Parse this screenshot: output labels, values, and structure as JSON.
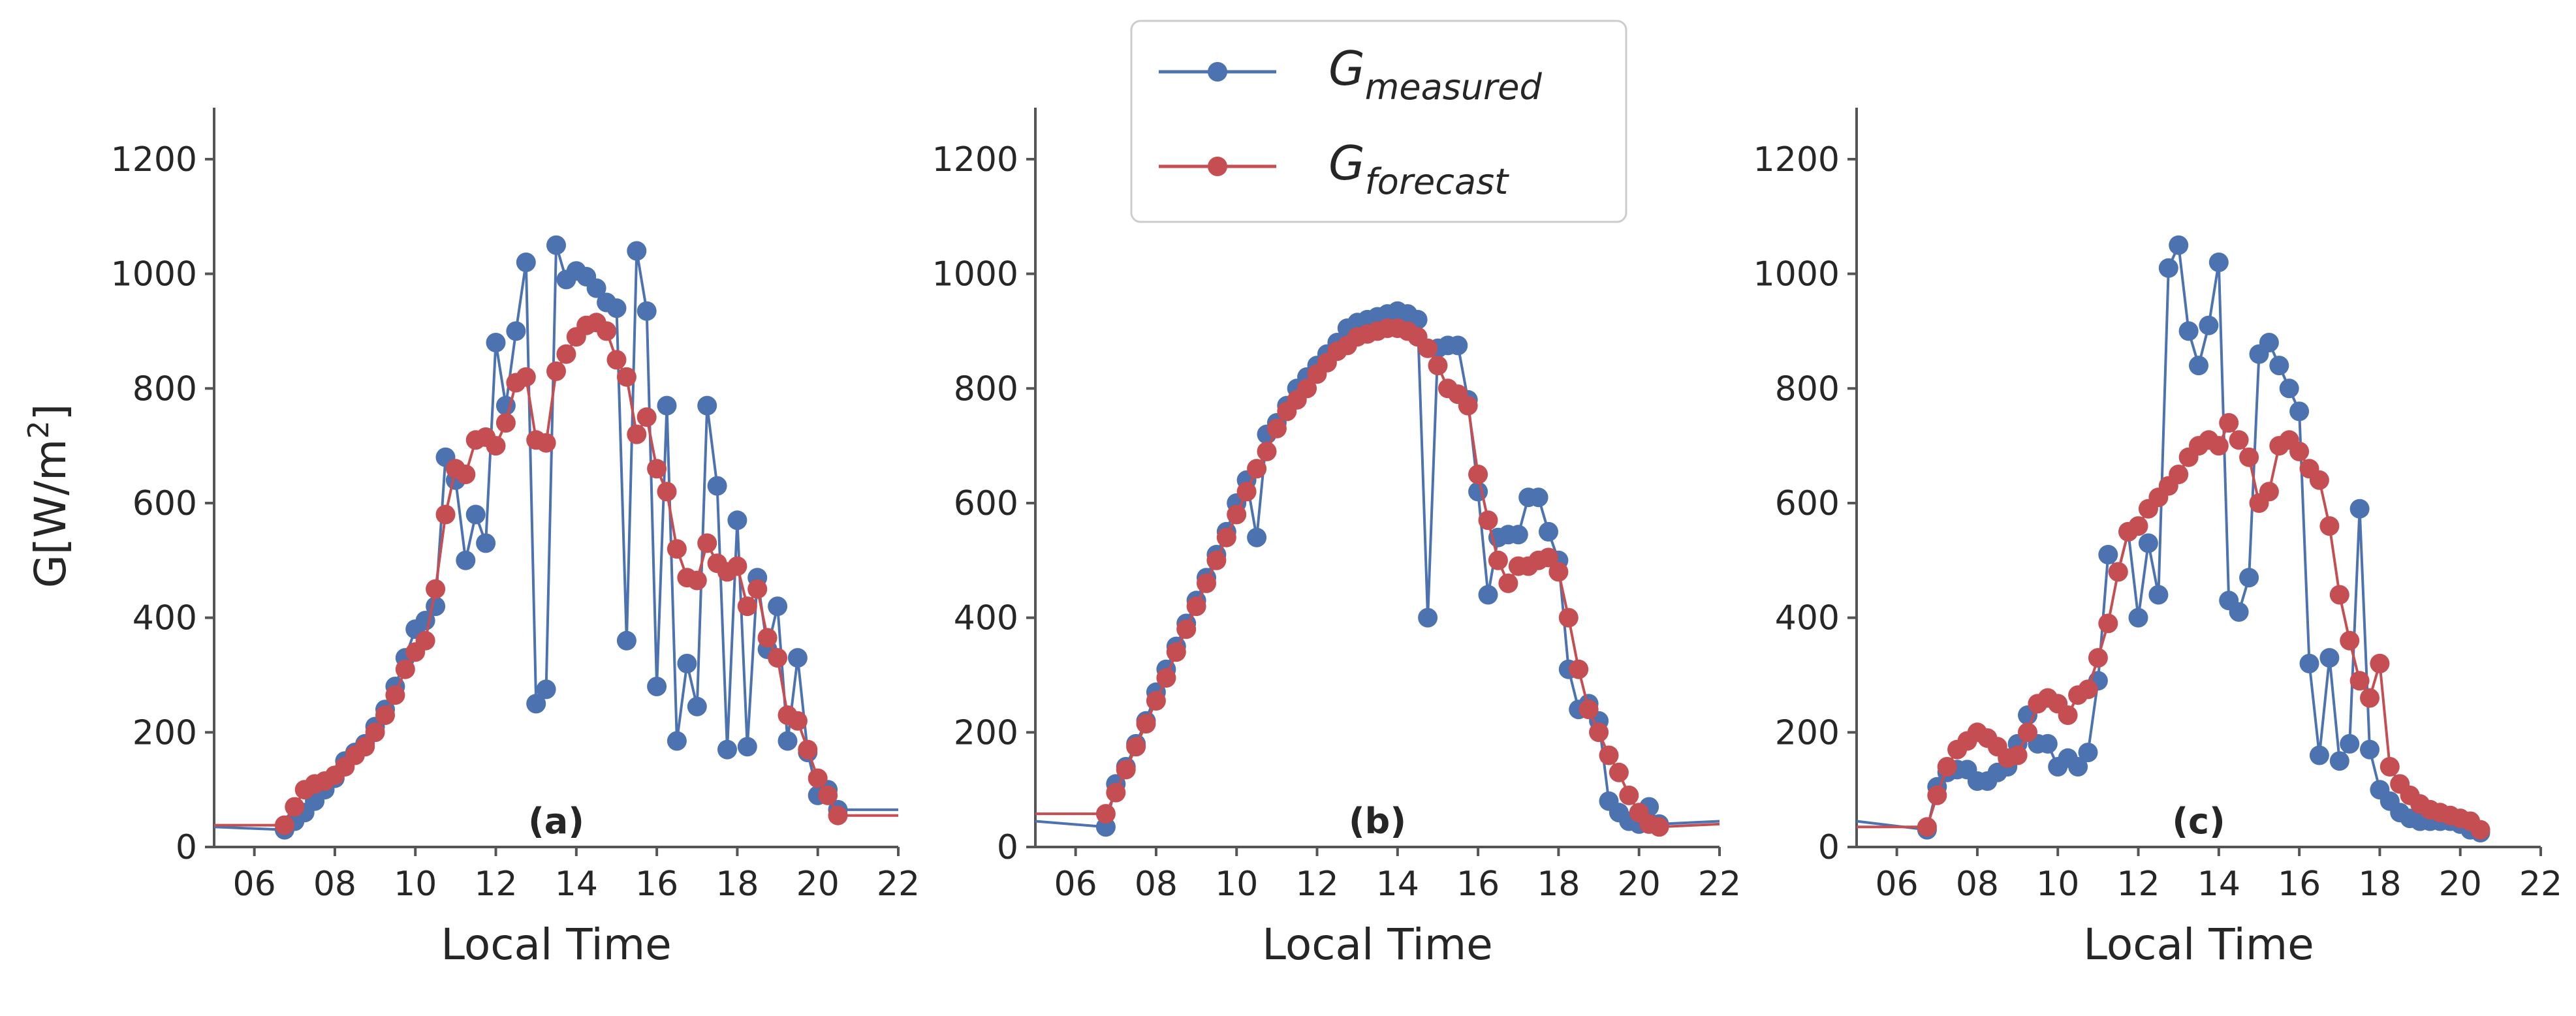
{
  "chart_data": [
    {
      "type": "line",
      "panel_label": "(a)",
      "xlabel": "Local Time",
      "ylabel_main": "G[W/m",
      "ylabel_sup": "2",
      "ylabel_close": "]",
      "xlim": [
        5,
        22
      ],
      "ylim": [
        0,
        1250
      ],
      "xticks": [
        6,
        8,
        10,
        12,
        14,
        16,
        18,
        20,
        22
      ],
      "xtick_labels": [
        "06",
        "08",
        "10",
        "12",
        "14",
        "16",
        "18",
        "20",
        "22"
      ],
      "yticks": [
        0,
        200,
        400,
        600,
        800,
        1000,
        1200
      ],
      "ytick_labels": [
        "0",
        "200",
        "400",
        "600",
        "800",
        "1000",
        "1200"
      ],
      "series": [
        {
          "name": "G_measured",
          "color": "#4c72b0",
          "line_start": [
            5,
            35
          ],
          "line_end": [
            22,
            65
          ],
          "x": [
            6.75,
            7,
            7.25,
            7.5,
            7.75,
            8,
            8.25,
            8.5,
            8.75,
            9,
            9.25,
            9.5,
            9.75,
            10,
            10.25,
            10.5,
            10.75,
            11,
            11.25,
            11.5,
            11.75,
            12,
            12.25,
            12.5,
            12.75,
            13,
            13.25,
            13.5,
            13.75,
            14,
            14.25,
            14.5,
            14.75,
            15,
            15.25,
            15.5,
            15.75,
            16,
            16.25,
            16.5,
            16.75,
            17,
            17.25,
            17.5,
            17.75,
            18,
            18.25,
            18.5,
            18.75,
            19,
            19.25,
            19.5,
            19.75,
            20,
            20.25,
            20.5
          ],
          "values": [
            30,
            45,
            60,
            80,
            100,
            120,
            150,
            165,
            180,
            210,
            240,
            280,
            330,
            380,
            395,
            420,
            680,
            640,
            500,
            580,
            530,
            880,
            770,
            900,
            1020,
            250,
            275,
            1050,
            990,
            1005,
            995,
            975,
            950,
            940,
            360,
            1040,
            935,
            280,
            770,
            185,
            320,
            245,
            770,
            630,
            170,
            570,
            175,
            470,
            345,
            420,
            185,
            330,
            165,
            90,
            100,
            65
          ]
        },
        {
          "name": "G_forecast",
          "color": "#c44e52",
          "line_start": [
            5,
            38
          ],
          "line_end": [
            22,
            55
          ],
          "x": [
            6.75,
            7,
            7.25,
            7.5,
            7.75,
            8,
            8.25,
            8.5,
            8.75,
            9,
            9.25,
            9.5,
            9.75,
            10,
            10.25,
            10.5,
            10.75,
            11,
            11.25,
            11.5,
            11.75,
            12,
            12.25,
            12.5,
            12.75,
            13,
            13.25,
            13.5,
            13.75,
            14,
            14.25,
            14.5,
            14.75,
            15,
            15.25,
            15.5,
            15.75,
            16,
            16.25,
            16.5,
            16.75,
            17,
            17.25,
            17.5,
            17.75,
            18,
            18.25,
            18.5,
            18.75,
            19,
            19.25,
            19.5,
            19.75,
            20,
            20.25,
            20.5
          ],
          "values": [
            38,
            70,
            100,
            110,
            115,
            125,
            140,
            160,
            175,
            200,
            230,
            265,
            310,
            340,
            360,
            450,
            580,
            660,
            650,
            710,
            715,
            700,
            740,
            810,
            820,
            710,
            705,
            830,
            860,
            890,
            910,
            915,
            900,
            850,
            820,
            720,
            750,
            660,
            620,
            520,
            470,
            465,
            530,
            495,
            480,
            490,
            420,
            450,
            365,
            330,
            230,
            220,
            170,
            120,
            90,
            55
          ]
        }
      ]
    },
    {
      "type": "line",
      "panel_label": "(b)",
      "xlabel": "Local Time",
      "xlim": [
        5,
        22
      ],
      "ylim": [
        0,
        1250
      ],
      "xticks": [
        6,
        8,
        10,
        12,
        14,
        16,
        18,
        20,
        22
      ],
      "xtick_labels": [
        "06",
        "08",
        "10",
        "12",
        "14",
        "16",
        "18",
        "20",
        "22"
      ],
      "yticks": [
        0,
        200,
        400,
        600,
        800,
        1000,
        1200
      ],
      "ytick_labels": [
        "0",
        "200",
        "400",
        "600",
        "800",
        "1000",
        "1200"
      ],
      "series": [
        {
          "name": "G_measured",
          "color": "#4c72b0",
          "line_start": [
            5,
            45
          ],
          "line_end": [
            22,
            45
          ],
          "x": [
            6.75,
            7,
            7.25,
            7.5,
            7.75,
            8,
            8.25,
            8.5,
            8.75,
            9,
            9.25,
            9.5,
            9.75,
            10,
            10.25,
            10.5,
            10.75,
            11,
            11.25,
            11.5,
            11.75,
            12,
            12.25,
            12.5,
            12.75,
            13,
            13.25,
            13.5,
            13.75,
            14,
            14.25,
            14.5,
            14.75,
            15,
            15.25,
            15.5,
            15.75,
            16,
            16.25,
            16.5,
            16.75,
            17,
            17.25,
            17.5,
            17.75,
            18,
            18.25,
            18.5,
            18.75,
            19,
            19.25,
            19.5,
            19.75,
            20,
            20.25,
            20.5
          ],
          "values": [
            35,
            110,
            140,
            180,
            220,
            270,
            310,
            350,
            390,
            430,
            470,
            510,
            550,
            600,
            640,
            540,
            720,
            740,
            770,
            800,
            820,
            840,
            860,
            880,
            905,
            915,
            920,
            925,
            930,
            935,
            930,
            920,
            400,
            870,
            875,
            875,
            780,
            620,
            440,
            540,
            545,
            545,
            610,
            610,
            550,
            500,
            310,
            240,
            250,
            220,
            80,
            60,
            45,
            40,
            70,
            40
          ]
        },
        {
          "name": "G_forecast",
          "color": "#c44e52",
          "line_start": [
            5,
            58
          ],
          "line_end": [
            22,
            40
          ],
          "x": [
            6.75,
            7,
            7.25,
            7.5,
            7.75,
            8,
            8.25,
            8.5,
            8.75,
            9,
            9.25,
            9.5,
            9.75,
            10,
            10.25,
            10.5,
            10.75,
            11,
            11.25,
            11.5,
            11.75,
            12,
            12.25,
            12.5,
            12.75,
            13,
            13.25,
            13.5,
            13.75,
            14,
            14.25,
            14.5,
            14.75,
            15,
            15.25,
            15.5,
            15.75,
            16,
            16.25,
            16.5,
            16.75,
            17,
            17.25,
            17.5,
            17.75,
            18,
            18.25,
            18.5,
            18.75,
            19,
            19.25,
            19.5,
            19.75,
            20,
            20.25,
            20.5
          ],
          "values": [
            58,
            95,
            135,
            175,
            215,
            255,
            295,
            340,
            380,
            420,
            460,
            500,
            540,
            580,
            620,
            660,
            690,
            730,
            760,
            780,
            800,
            825,
            845,
            865,
            875,
            890,
            895,
            900,
            905,
            905,
            900,
            890,
            870,
            840,
            800,
            790,
            770,
            650,
            570,
            500,
            460,
            490,
            490,
            500,
            505,
            480,
            400,
            310,
            240,
            200,
            160,
            130,
            90,
            60,
            40,
            35
          ]
        }
      ]
    },
    {
      "type": "line",
      "panel_label": "(c)",
      "xlabel": "Local Time",
      "xlim": [
        5,
        22
      ],
      "ylim": [
        0,
        1250
      ],
      "xticks": [
        6,
        8,
        10,
        12,
        14,
        16,
        18,
        20,
        22
      ],
      "xtick_labels": [
        "06",
        "08",
        "10",
        "12",
        "14",
        "16",
        "18",
        "20",
        "22"
      ],
      "yticks": [
        0,
        200,
        400,
        600,
        800,
        1000,
        1200
      ],
      "ytick_labels": [
        "0",
        "200",
        "400",
        "600",
        "800",
        "1000",
        "1200"
      ],
      "series": [
        {
          "name": "G_measured",
          "color": "#4c72b0",
          "line_start": [
            5,
            45
          ],
          "line_end": [
            20.5,
            25
          ],
          "x": [
            6.75,
            7,
            7.25,
            7.5,
            7.75,
            8,
            8.25,
            8.5,
            8.75,
            9,
            9.25,
            9.5,
            9.75,
            10,
            10.25,
            10.5,
            10.75,
            11,
            11.25,
            11.5,
            11.75,
            12,
            12.25,
            12.5,
            12.75,
            13,
            13.25,
            13.5,
            13.75,
            14,
            14.25,
            14.5,
            14.75,
            15,
            15.25,
            15.5,
            15.75,
            16,
            16.25,
            16.5,
            16.75,
            17,
            17.25,
            17.5,
            17.75,
            18,
            18.25,
            18.5,
            18.75,
            19,
            19.25,
            19.5,
            19.75,
            20,
            20.25,
            20.5
          ],
          "values": [
            30,
            105,
            130,
            135,
            135,
            115,
            115,
            130,
            140,
            180,
            230,
            180,
            180,
            140,
            155,
            140,
            165,
            290,
            510,
            480,
            550,
            400,
            530,
            440,
            1010,
            1050,
            900,
            840,
            910,
            1020,
            430,
            410,
            470,
            860,
            880,
            840,
            800,
            760,
            320,
            160,
            330,
            150,
            180,
            590,
            170,
            100,
            80,
            60,
            50,
            45,
            45,
            45,
            45,
            40,
            30,
            25
          ]
        },
        {
          "name": "G_forecast",
          "color": "#c44e52",
          "line_start": [
            5,
            35
          ],
          "line_end": [
            20.5,
            30
          ],
          "x": [
            6.75,
            7,
            7.25,
            7.5,
            7.75,
            8,
            8.25,
            8.5,
            8.75,
            9,
            9.25,
            9.5,
            9.75,
            10,
            10.25,
            10.5,
            10.75,
            11,
            11.25,
            11.5,
            11.75,
            12,
            12.25,
            12.5,
            12.75,
            13,
            13.25,
            13.5,
            13.75,
            14,
            14.25,
            14.5,
            14.75,
            15,
            15.25,
            15.5,
            15.75,
            16,
            16.25,
            16.5,
            16.75,
            17,
            17.25,
            17.5,
            17.75,
            18,
            18.25,
            18.5,
            18.75,
            19,
            19.25,
            19.5,
            19.75,
            20,
            20.25,
            20.5
          ],
          "values": [
            35,
            90,
            140,
            170,
            185,
            200,
            190,
            175,
            155,
            160,
            200,
            250,
            260,
            250,
            230,
            265,
            275,
            330,
            390,
            480,
            550,
            560,
            590,
            610,
            630,
            650,
            680,
            700,
            710,
            700,
            740,
            710,
            680,
            600,
            620,
            700,
            710,
            690,
            660,
            640,
            560,
            440,
            360,
            290,
            260,
            320,
            140,
            110,
            90,
            75,
            65,
            60,
            55,
            50,
            45,
            30
          ]
        }
      ]
    }
  ],
  "legend": {
    "placement": "upper-center",
    "entries": [
      {
        "main": "G",
        "sub": "measured",
        "color": "#4c72b0"
      },
      {
        "main": "G",
        "sub": "forecast",
        "color": "#c44e52"
      }
    ]
  }
}
